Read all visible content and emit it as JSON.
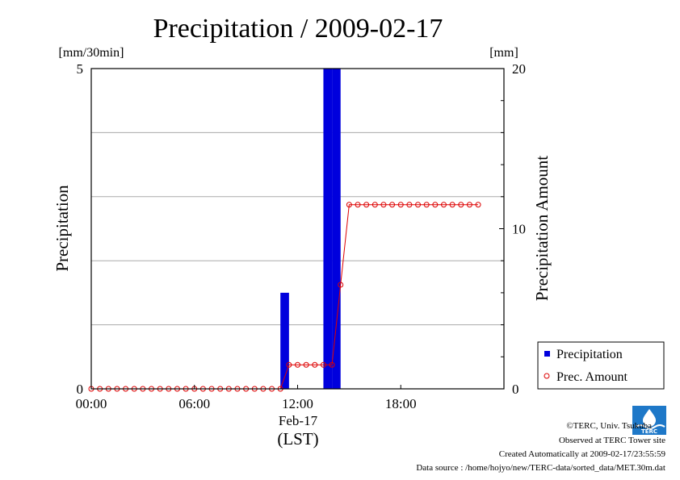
{
  "chart_data": {
    "type": "bar+line",
    "title": "Precipitation / 2009-02-17",
    "left_unit": "[mm/30min]",
    "right_unit": "[mm]",
    "ylabel_left": "Precipitation",
    "ylabel_right": "Precipitation Amount",
    "ylim_left": [
      0,
      5
    ],
    "ylim_right": [
      0,
      20
    ],
    "left_ticks": [
      "0",
      "5"
    ],
    "right_ticks": [
      "0",
      "10",
      "20"
    ],
    "x_ticks": [
      {
        "hour": 0,
        "label": "00:00"
      },
      {
        "hour": 6,
        "label": "06:00"
      },
      {
        "hour": 12,
        "label": "12:00"
      },
      {
        "hour": 18,
        "label": "18:00"
      }
    ],
    "x_date_label": "Feb-17",
    "x_timezone": "(LST)",
    "xlim_hours": [
      0,
      24
    ],
    "grid": true,
    "legend_position": "bottom-right",
    "series": [
      {
        "name": "Precipitation",
        "kind": "bar",
        "axis": "left",
        "color": "#0000dd",
        "bars": [
          {
            "start_hour": 11.0,
            "value": 1.5
          },
          {
            "start_hour": 13.5,
            "value": 5.0
          },
          {
            "start_hour": 14.0,
            "value": 5.0
          }
        ]
      },
      {
        "name": "Prec. Amount",
        "kind": "line-marker",
        "axis": "right",
        "color": "#dd0000",
        "start_hour": 0,
        "step_hours": 0.5,
        "values": [
          0,
          0,
          0,
          0,
          0,
          0,
          0,
          0,
          0,
          0,
          0,
          0,
          0,
          0,
          0,
          0,
          0,
          0,
          0,
          0,
          0,
          0,
          0,
          1.5,
          1.5,
          1.5,
          1.5,
          1.5,
          1.5,
          6.5,
          11.5,
          11.5,
          11.5,
          11.5,
          11.5,
          11.5,
          11.5,
          11.5,
          11.5,
          11.5,
          11.5,
          11.5,
          11.5,
          11.5,
          11.5,
          11.5
        ]
      }
    ]
  },
  "footer": {
    "copyright": "©TERC, Univ. Tsukuba",
    "observed": "Observed at TERC Tower site",
    "created": "Created Automatically at 2009-02-17/23:55:59",
    "source": "Data source : /home/hojyo/new/TERC-data/sorted_data/MET.30m.dat",
    "logo_text": "TERC"
  }
}
